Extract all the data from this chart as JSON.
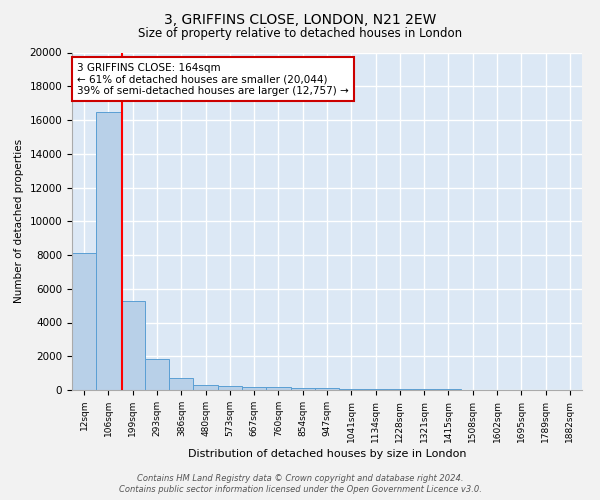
{
  "title": "3, GRIFFINS CLOSE, LONDON, N21 2EW",
  "subtitle": "Size of property relative to detached houses in London",
  "xlabel": "Distribution of detached houses by size in London",
  "ylabel": "Number of detached properties",
  "bar_labels": [
    "12sqm",
    "106sqm",
    "199sqm",
    "293sqm",
    "386sqm",
    "480sqm",
    "573sqm",
    "667sqm",
    "760sqm",
    "854sqm",
    "947sqm",
    "1041sqm",
    "1134sqm",
    "1228sqm",
    "1321sqm",
    "1415sqm",
    "1508sqm",
    "1602sqm",
    "1695sqm",
    "1789sqm",
    "1882sqm"
  ],
  "bar_values": [
    8100,
    16500,
    5300,
    1850,
    700,
    300,
    220,
    190,
    150,
    130,
    100,
    80,
    60,
    50,
    40,
    30,
    25,
    20,
    15,
    10,
    5
  ],
  "bar_color": "#b8d0e8",
  "bar_edge_color": "#5a9fd4",
  "background_color": "#dce8f5",
  "grid_color": "#ffffff",
  "red_line_x": 1.55,
  "annotation_text": "3 GRIFFINS CLOSE: 164sqm\n← 61% of detached houses are smaller (20,044)\n39% of semi-detached houses are larger (12,757) →",
  "annotation_box_color": "#ffffff",
  "annotation_box_edge": "#cc0000",
  "ylim": [
    0,
    20000
  ],
  "yticks": [
    0,
    2000,
    4000,
    6000,
    8000,
    10000,
    12000,
    14000,
    16000,
    18000,
    20000
  ],
  "footer_line1": "Contains HM Land Registry data © Crown copyright and database right 2024.",
  "footer_line2": "Contains public sector information licensed under the Open Government Licence v3.0.",
  "fig_bg": "#f2f2f2"
}
